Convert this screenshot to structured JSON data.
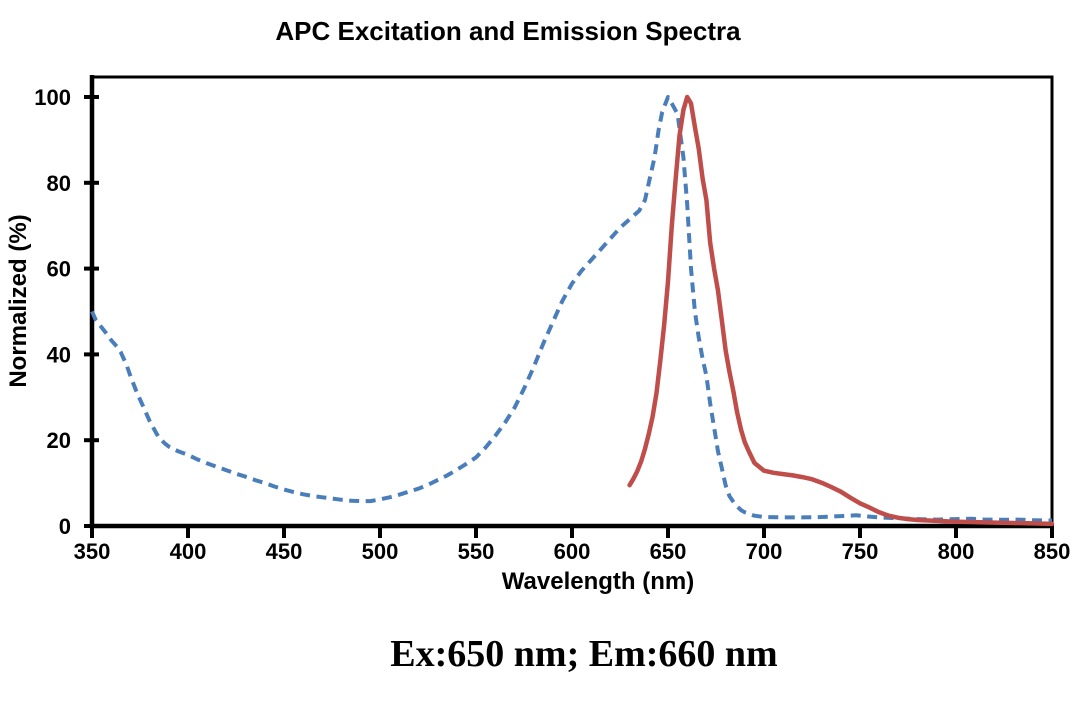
{
  "chart_data": {
    "type": "line",
    "title": "APC Excitation and Emission Spectra",
    "xlabel": "Wavelength (nm)",
    "ylabel": "Normalized (%)",
    "annotation": "Ex:650 nm; Em:660 nm",
    "xlim": [
      350,
      850
    ],
    "ylim": [
      0,
      105
    ],
    "x_ticks": [
      350,
      400,
      450,
      500,
      550,
      600,
      650,
      700,
      750,
      800,
      850
    ],
    "y_ticks": [
      0,
      20,
      40,
      60,
      80,
      100
    ],
    "grid": false,
    "legend_position": "none",
    "axis_color": "#000000",
    "series": [
      {
        "name": "Excitation",
        "line_style": "dashed",
        "color": "#4a7ebb",
        "width": 4,
        "peak_nm": 650,
        "points": [
          [
            350,
            50
          ],
          [
            352,
            48
          ],
          [
            355,
            46.3
          ],
          [
            358,
            44.6
          ],
          [
            360,
            43.3
          ],
          [
            363,
            41.8
          ],
          [
            365,
            40.5
          ],
          [
            368,
            37.5
          ],
          [
            370,
            35
          ],
          [
            373,
            31.5
          ],
          [
            375,
            29.5
          ],
          [
            378,
            26.5
          ],
          [
            380,
            24.5
          ],
          [
            383,
            22
          ],
          [
            385,
            20.5
          ],
          [
            388,
            19.2
          ],
          [
            390,
            18.5
          ],
          [
            395,
            17.4
          ],
          [
            400,
            16.6
          ],
          [
            405,
            15.5
          ],
          [
            410,
            14.6
          ],
          [
            415,
            13.8
          ],
          [
            420,
            13
          ],
          [
            425,
            12.2
          ],
          [
            430,
            11.5
          ],
          [
            435,
            10.7
          ],
          [
            440,
            10
          ],
          [
            445,
            9.2
          ],
          [
            450,
            8.5
          ],
          [
            455,
            7.9
          ],
          [
            460,
            7.4
          ],
          [
            465,
            7
          ],
          [
            470,
            6.7
          ],
          [
            475,
            6.4
          ],
          [
            480,
            6.1
          ],
          [
            485,
            5.9
          ],
          [
            490,
            5.8
          ],
          [
            495,
            5.8
          ],
          [
            500,
            6.2
          ],
          [
            505,
            6.7
          ],
          [
            510,
            7.3
          ],
          [
            515,
            8
          ],
          [
            520,
            8.7
          ],
          [
            525,
            9.6
          ],
          [
            530,
            10.7
          ],
          [
            535,
            11.8
          ],
          [
            540,
            13.1
          ],
          [
            545,
            14.5
          ],
          [
            550,
            16
          ],
          [
            555,
            18.3
          ],
          [
            560,
            21
          ],
          [
            565,
            24
          ],
          [
            570,
            27.5
          ],
          [
            575,
            32
          ],
          [
            580,
            37
          ],
          [
            585,
            42.5
          ],
          [
            590,
            47.5
          ],
          [
            595,
            52.5
          ],
          [
            600,
            56.5
          ],
          [
            605,
            59.5
          ],
          [
            610,
            62
          ],
          [
            615,
            64.5
          ],
          [
            620,
            67
          ],
          [
            625,
            69.5
          ],
          [
            630,
            71.5
          ],
          [
            635,
            73.5
          ],
          [
            638,
            76
          ],
          [
            640,
            80
          ],
          [
            643,
            86
          ],
          [
            645,
            92
          ],
          [
            647,
            96.5
          ],
          [
            650,
            100
          ],
          [
            652,
            98.5
          ],
          [
            655,
            96
          ],
          [
            658,
            86
          ],
          [
            660,
            75
          ],
          [
            662,
            60
          ],
          [
            664,
            50
          ],
          [
            666,
            44
          ],
          [
            668,
            39
          ],
          [
            670,
            35
          ],
          [
            672,
            28.5
          ],
          [
            674,
            23
          ],
          [
            676,
            17.5
          ],
          [
            678,
            13.5
          ],
          [
            680,
            9.5
          ],
          [
            682,
            7
          ],
          [
            685,
            5
          ],
          [
            688,
            3.7
          ],
          [
            690,
            3.2
          ],
          [
            695,
            2.4
          ],
          [
            700,
            2.1
          ],
          [
            710,
            2
          ],
          [
            720,
            2
          ],
          [
            730,
            2.1
          ],
          [
            740,
            2.3
          ],
          [
            748,
            2.5
          ],
          [
            755,
            2.2
          ],
          [
            760,
            2
          ],
          [
            770,
            1.8
          ],
          [
            780,
            1.6
          ],
          [
            790,
            1.5
          ],
          [
            800,
            1.6
          ],
          [
            808,
            1.7
          ],
          [
            815,
            1.5
          ],
          [
            825,
            1.45
          ],
          [
            832,
            1.5
          ],
          [
            840,
            1.35
          ],
          [
            850,
            1.25
          ]
        ]
      },
      {
        "name": "Emission",
        "line_style": "solid",
        "color": "#bf4e4b",
        "width": 4.5,
        "peak_nm": 660,
        "points": [
          [
            630,
            9.5
          ],
          [
            632,
            11
          ],
          [
            634,
            12.8
          ],
          [
            636,
            15
          ],
          [
            638,
            18
          ],
          [
            640,
            21.5
          ],
          [
            642,
            25.5
          ],
          [
            644,
            31
          ],
          [
            646,
            38.5
          ],
          [
            648,
            47
          ],
          [
            650,
            57
          ],
          [
            652,
            70
          ],
          [
            654,
            81
          ],
          [
            656,
            91
          ],
          [
            658,
            97
          ],
          [
            660,
            100
          ],
          [
            662,
            98.5
          ],
          [
            664,
            93
          ],
          [
            666,
            88
          ],
          [
            668,
            81
          ],
          [
            670,
            76
          ],
          [
            672,
            66
          ],
          [
            674,
            60
          ],
          [
            676,
            55
          ],
          [
            678,
            48
          ],
          [
            680,
            41
          ],
          [
            682,
            36
          ],
          [
            684,
            31.5
          ],
          [
            686,
            26.5
          ],
          [
            688,
            22.5
          ],
          [
            690,
            19.5
          ],
          [
            692,
            17.5
          ],
          [
            695,
            14.7
          ],
          [
            700,
            12.9
          ],
          [
            705,
            12.4
          ],
          [
            710,
            12.1
          ],
          [
            715,
            11.8
          ],
          [
            720,
            11.4
          ],
          [
            725,
            10.9
          ],
          [
            730,
            10.1
          ],
          [
            735,
            9.1
          ],
          [
            740,
            8
          ],
          [
            745,
            6.6
          ],
          [
            750,
            5.3
          ],
          [
            755,
            4.3
          ],
          [
            760,
            3.2
          ],
          [
            765,
            2.4
          ],
          [
            770,
            1.9
          ],
          [
            775,
            1.6
          ],
          [
            780,
            1.4
          ],
          [
            790,
            1.2
          ],
          [
            800,
            1
          ],
          [
            810,
            0.9
          ],
          [
            820,
            0.8
          ],
          [
            830,
            0.7
          ],
          [
            840,
            0.6
          ],
          [
            850,
            0.5
          ]
        ]
      }
    ]
  }
}
